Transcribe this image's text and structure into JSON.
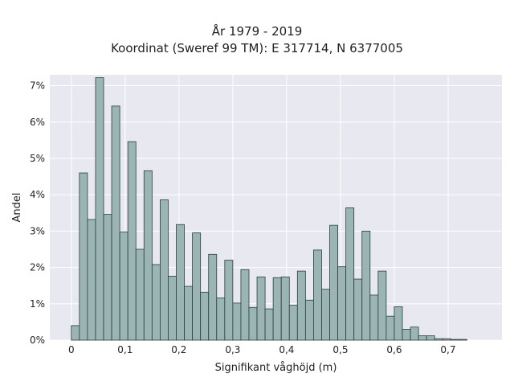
{
  "chart_data": {
    "type": "bar",
    "title": "År 1979 - 2019",
    "subtitle": "Koordinat (Sweref 99 TM): E 317714, N 6377005",
    "xlabel": "Signifikant våghöjd (m)",
    "ylabel": "Andel",
    "xlim": [
      -0.04,
      0.8
    ],
    "ylim": [
      0,
      7.3
    ],
    "bin_width": 0.015,
    "x_ticks": [
      0,
      0.1,
      0.2,
      0.3,
      0.4,
      0.5,
      0.6,
      0.7
    ],
    "x_tick_labels": [
      "0",
      "0,1",
      "0,2",
      "0,3",
      "0,4",
      "0,5",
      "0,6",
      "0,7"
    ],
    "y_ticks": [
      0,
      1,
      2,
      3,
      4,
      5,
      6,
      7
    ],
    "y_tick_labels": [
      "0%",
      "1%",
      "2%",
      "3%",
      "4%",
      "5%",
      "6%",
      "7%"
    ],
    "grid": true,
    "bar_color": "#9ab5b4",
    "bar_edge_color": "#2c3e3d",
    "background_color": "#e8e8f0",
    "bin_starts": [
      0.0,
      0.015,
      0.03,
      0.045,
      0.06,
      0.075,
      0.09,
      0.105,
      0.12,
      0.135,
      0.15,
      0.165,
      0.18,
      0.195,
      0.21,
      0.225,
      0.24,
      0.255,
      0.27,
      0.285,
      0.3,
      0.315,
      0.33,
      0.345,
      0.36,
      0.375,
      0.39,
      0.405,
      0.42,
      0.435,
      0.45,
      0.465,
      0.48,
      0.495,
      0.51,
      0.525,
      0.54,
      0.555,
      0.57,
      0.585,
      0.6,
      0.615,
      0.63,
      0.645,
      0.66,
      0.675,
      0.69,
      0.705,
      0.72,
      0.735
    ],
    "values": [
      0.4,
      4.6,
      3.32,
      7.22,
      3.46,
      6.44,
      2.98,
      5.46,
      2.5,
      4.66,
      2.08,
      3.86,
      1.76,
      3.18,
      1.48,
      2.95,
      1.32,
      2.36,
      1.16,
      2.2,
      1.02,
      1.94,
      0.9,
      1.74,
      0.86,
      1.72,
      1.74,
      0.96,
      1.9,
      1.1,
      2.48,
      1.4,
      3.16,
      2.02,
      3.64,
      1.68,
      3.0,
      1.24,
      1.9,
      0.66,
      0.92,
      0.3,
      0.36,
      0.12,
      0.12,
      0.04,
      0.04,
      0.02,
      0.02,
      0.0
    ]
  }
}
